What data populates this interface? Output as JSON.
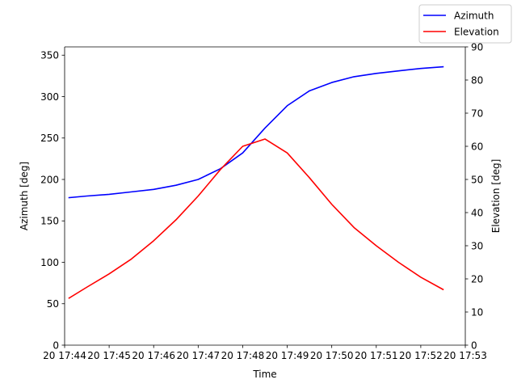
{
  "chart_data": {
    "type": "line",
    "xlabel": "Time",
    "ylabel_left": "Azimuth [deg]",
    "ylabel_right": "Elevation [deg]",
    "xticks": [
      "20 17:44",
      "20 17:45",
      "20 17:46",
      "20 17:47",
      "20 17:48",
      "20 17:49",
      "20 17:50",
      "20 17:51",
      "20 17:52",
      "20 17:53"
    ],
    "xlim": [
      0,
      9
    ],
    "yleft": {
      "lim": [
        0,
        360
      ],
      "ticks": [
        0,
        50,
        100,
        150,
        200,
        250,
        300,
        350
      ]
    },
    "yright": {
      "lim": [
        0,
        90
      ],
      "ticks": [
        0,
        10,
        20,
        30,
        40,
        50,
        60,
        70,
        80,
        90
      ]
    },
    "legend_position": "top-right",
    "grid": false,
    "series": [
      {
        "name": "Azimuth",
        "axis": "left",
        "color": "#0000ff",
        "x": [
          0.1,
          0.5,
          1.0,
          1.5,
          2.0,
          2.5,
          3.0,
          3.5,
          4.0,
          4.5,
          5.0,
          5.5,
          6.0,
          6.5,
          7.0,
          7.5,
          8.0,
          8.5
        ],
        "y": [
          178,
          180,
          182,
          185,
          188,
          193,
          200,
          213,
          232,
          262,
          289,
          307,
          317,
          324,
          328,
          331,
          334,
          336
        ]
      },
      {
        "name": "Elevation",
        "axis": "right",
        "color": "#ff0000",
        "x": [
          0.1,
          0.5,
          1.0,
          1.5,
          2.0,
          2.5,
          3.0,
          3.5,
          4.0,
          4.5,
          5.0,
          5.5,
          6.0,
          6.5,
          7.0,
          7.5,
          8.0,
          8.5
        ],
        "y": [
          14.2,
          17.5,
          21.5,
          26.0,
          31.5,
          37.8,
          45.0,
          53.0,
          60.0,
          62.2,
          58.0,
          50.5,
          42.5,
          35.5,
          30.0,
          25.0,
          20.5,
          16.8
        ]
      }
    ]
  }
}
